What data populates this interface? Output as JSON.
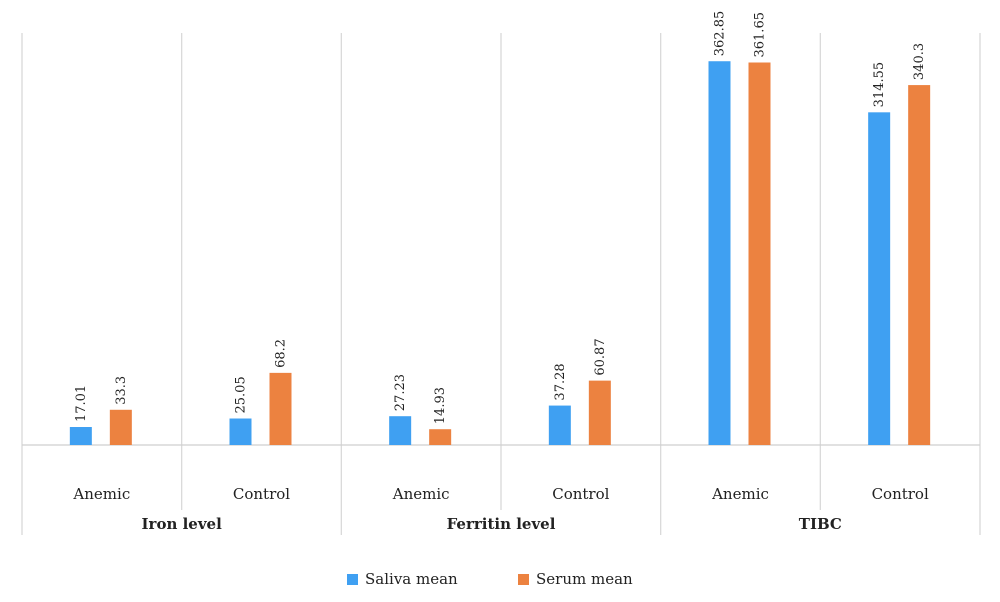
{
  "chart_data": {
    "type": "bar",
    "title": "",
    "xlabel": "",
    "ylabel": "",
    "ylim": [
      0,
      380
    ],
    "grid": false,
    "legend_position": "bottom",
    "groups": [
      {
        "label": "Iron level",
        "categories": [
          "Anemic",
          "Control"
        ]
      },
      {
        "label": "Ferritin level",
        "categories": [
          "Anemic",
          "Control"
        ]
      },
      {
        "label": "TIBC",
        "categories": [
          "Anemic",
          "Control"
        ]
      }
    ],
    "series": [
      {
        "name": "Saliva mean",
        "color": "#3fa0f2",
        "values": [
          17.01,
          25.05,
          27.23,
          37.28,
          362.85,
          314.55
        ],
        "value_labels": [
          "17.01",
          "25.05",
          "27.23",
          "37.28",
          "362.85",
          "314.55"
        ]
      },
      {
        "name": "Serum mean",
        "color": "#ec8240",
        "values": [
          33.3,
          68.2,
          14.93,
          60.87,
          361.65,
          340.3
        ],
        "value_labels": [
          "33.3",
          "68.2",
          "14.93",
          "60.87",
          "361.65",
          "340.3"
        ]
      }
    ]
  }
}
